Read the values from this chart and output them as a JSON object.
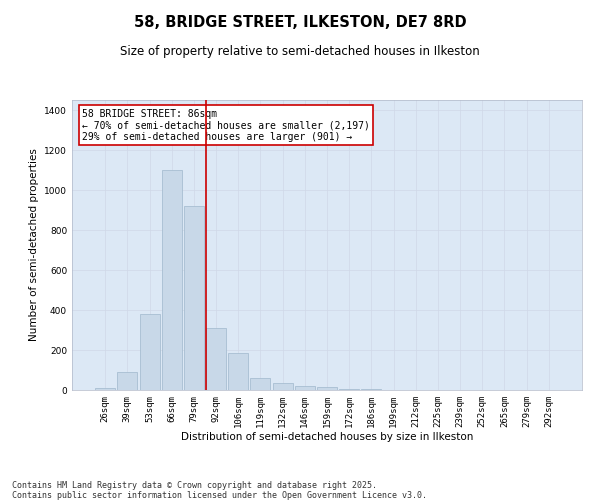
{
  "title": "58, BRIDGE STREET, ILKESTON, DE7 8RD",
  "subtitle": "Size of property relative to semi-detached houses in Ilkeston",
  "xlabel": "Distribution of semi-detached houses by size in Ilkeston",
  "ylabel": "Number of semi-detached properties",
  "bar_color": "#c8d8e8",
  "bar_edge_color": "#a0b8cc",
  "grid_color": "#d0d8e8",
  "background_color": "#dce8f5",
  "fig_background_color": "#ffffff",
  "property_line_color": "#cc0000",
  "annotation_box_color": "#cc0000",
  "annotation_text": "58 BRIDGE STREET: 86sqm\n← 70% of semi-detached houses are smaller (2,197)\n29% of semi-detached houses are larger (901) →",
  "annotation_fontsize": 7,
  "categories": [
    "26sqm",
    "39sqm",
    "53sqm",
    "66sqm",
    "79sqm",
    "92sqm",
    "106sqm",
    "119sqm",
    "132sqm",
    "146sqm",
    "159sqm",
    "172sqm",
    "186sqm",
    "199sqm",
    "212sqm",
    "225sqm",
    "239sqm",
    "252sqm",
    "265sqm",
    "279sqm",
    "292sqm"
  ],
  "values": [
    10,
    90,
    380,
    1100,
    920,
    310,
    185,
    60,
    35,
    20,
    14,
    7,
    3,
    2,
    0,
    0,
    0,
    0,
    0,
    0,
    0
  ],
  "ylim": [
    0,
    1450
  ],
  "yticks": [
    0,
    200,
    400,
    600,
    800,
    1000,
    1200,
    1400
  ],
  "footnote": "Contains HM Land Registry data © Crown copyright and database right 2025.\nContains public sector information licensed under the Open Government Licence v3.0.",
  "footnote_fontsize": 6,
  "title_fontsize": 10.5,
  "subtitle_fontsize": 8.5,
  "xlabel_fontsize": 7.5,
  "ylabel_fontsize": 7.5,
  "tick_fontsize": 6.5,
  "property_line_x": 4.54
}
